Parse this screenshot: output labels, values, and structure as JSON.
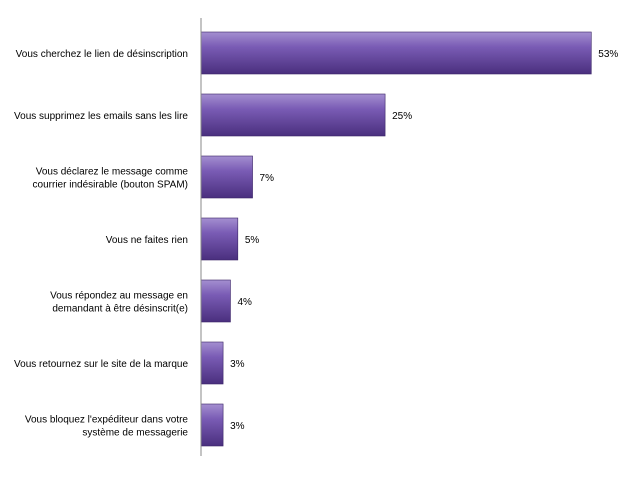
{
  "chart_data": {
    "type": "bar",
    "orientation": "horizontal",
    "categories": [
      [
        "Vous cherchez le lien de désinscription"
      ],
      [
        "Vous supprimez les emails sans les lire"
      ],
      [
        "Vous déclarez le message comme",
        "courrier indésirable (bouton SPAM)"
      ],
      [
        "Vous ne faites rien"
      ],
      [
        "Vous répondez au message en",
        "demandant à être désinscrit(e)"
      ],
      [
        "Vous retournez sur le site de la marque"
      ],
      [
        "Vous bloquez l'expéditeur dans votre",
        "système de messagerie"
      ]
    ],
    "values": [
      53,
      25,
      7,
      5,
      4,
      3,
      3
    ],
    "value_labels": [
      "53%",
      "25%",
      "7%",
      "5%",
      "4%",
      "3%",
      "3%"
    ],
    "unit": "%",
    "title": "",
    "xlabel": "",
    "ylabel": "",
    "xlim": [
      0,
      55
    ],
    "grid": false,
    "legend": "none",
    "colors": {
      "bar_light": "#a48fd0",
      "bar_main": "#7a5cb5",
      "bar_dark": "#4a2f7e",
      "bar_edge": "#3a2466",
      "axis": "#888888"
    }
  }
}
